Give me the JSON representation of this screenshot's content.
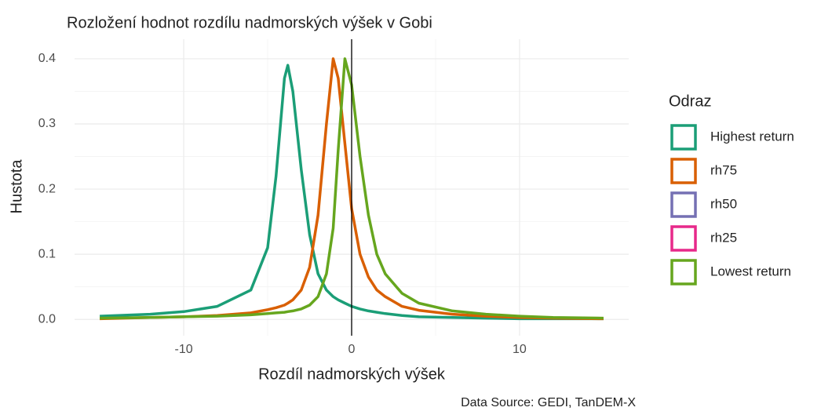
{
  "chart_data": {
    "type": "line",
    "title": "Rozložení hodnot rozdílu nadmorských výšek v Gobi",
    "x_label": "Rozdíl nadmorských výšek",
    "y_label": "Hustota",
    "caption": "Data Source: GEDI, TanDEM-X",
    "legend_title": "Odraz",
    "legend_position": "right",
    "grid": true,
    "vline": 0,
    "x": [
      -15,
      -12,
      -10,
      -8,
      -6,
      -5,
      -4.5,
      -4,
      -3.8,
      -3.5,
      -3,
      -2.5,
      -2,
      -1.5,
      -1.1,
      -0.8,
      -0.4,
      0,
      0.5,
      1,
      1.5,
      2,
      3,
      4,
      6,
      8,
      10,
      12,
      15
    ],
    "series": [
      {
        "name": "Highest return",
        "color": "#1b9e77",
        "values": [
          0.005,
          0.008,
          0.012,
          0.02,
          0.045,
          0.11,
          0.22,
          0.37,
          0.39,
          0.35,
          0.23,
          0.13,
          0.07,
          0.045,
          0.035,
          0.03,
          0.025,
          0.02,
          0.016,
          0.013,
          0.011,
          0.009,
          0.006,
          0.004,
          0.003,
          0.002,
          0.001,
          0.001,
          0.001
        ]
      },
      {
        "name": "rh75",
        "color": "#d95f02",
        "values": [
          0.001,
          0.003,
          0.004,
          0.006,
          0.01,
          0.015,
          0.018,
          0.022,
          0.025,
          0.03,
          0.045,
          0.08,
          0.16,
          0.3,
          0.4,
          0.37,
          0.27,
          0.17,
          0.1,
          0.065,
          0.045,
          0.035,
          0.02,
          0.014,
          0.008,
          0.005,
          0.003,
          0.002,
          0.001
        ]
      },
      {
        "name": "rh50",
        "color": "#7570b3",
        "values": [
          null,
          null,
          null,
          null,
          null,
          null,
          null,
          null,
          null,
          null,
          null,
          null,
          null,
          null,
          null,
          null,
          null,
          null,
          null,
          null,
          null,
          null,
          null,
          null,
          null,
          null,
          null,
          null,
          null
        ]
      },
      {
        "name": "rh25",
        "color": "#e7298a",
        "values": [
          null,
          null,
          null,
          null,
          null,
          null,
          null,
          null,
          null,
          null,
          null,
          null,
          null,
          null,
          null,
          null,
          null,
          null,
          null,
          null,
          null,
          null,
          null,
          null,
          null,
          null,
          null,
          null,
          null
        ]
      },
      {
        "name": "Lowest return",
        "color": "#66a61e",
        "values": [
          0.002,
          0.003,
          0.004,
          0.005,
          0.007,
          0.009,
          0.01,
          0.011,
          0.012,
          0.013,
          0.016,
          0.022,
          0.035,
          0.07,
          0.14,
          0.26,
          0.4,
          0.36,
          0.25,
          0.16,
          0.1,
          0.07,
          0.04,
          0.025,
          0.013,
          0.008,
          0.005,
          0.003,
          0.002
        ]
      }
    ],
    "xlim": [
      -16.5,
      16.5
    ],
    "xticks": [
      -10,
      0,
      10
    ],
    "ylim": [
      -0.025,
      0.43
    ],
    "yticks": [
      {
        "value": 0,
        "label": "0.0"
      },
      0.1,
      0.2,
      0.3,
      0.4
    ]
  }
}
